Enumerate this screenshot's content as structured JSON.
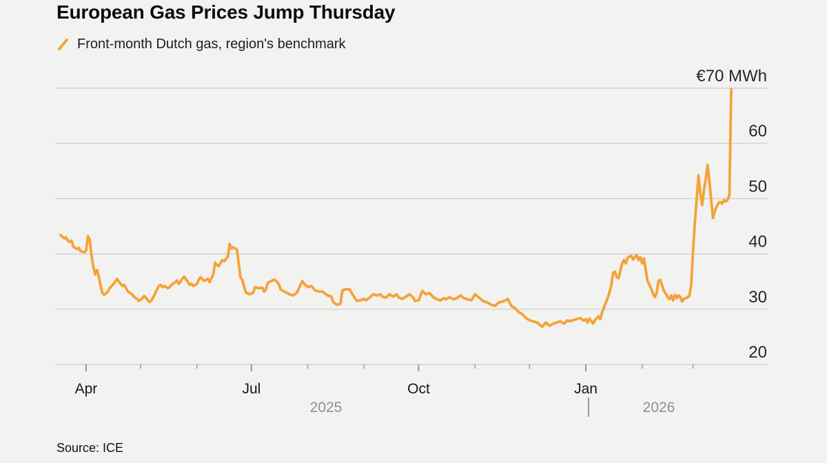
{
  "header": {
    "title": "European Gas Prices Jump Thursday",
    "legend_label": "Front-month Dutch gas, region's benchmark"
  },
  "source": {
    "label": "Source: ICE"
  },
  "colors": {
    "line": "#F5A23A",
    "background": "#F2F2F0",
    "grid": "#CBCBC8",
    "tick": "#9A9A9A",
    "axis_text": "#262626",
    "month_text": "#161616",
    "year_text": "#8E8E8E"
  },
  "chart_data": {
    "type": "line",
    "title": "European Gas Prices Jump Thursday",
    "subtitle": "Front-month Dutch gas, region's benchmark",
    "ylabel": "EUR per MWh",
    "unit_label": "€70 MWh",
    "y_ticks": [
      70,
      60,
      50,
      40,
      30,
      20
    ],
    "ylim": [
      20,
      70
    ],
    "grid": "horizontal",
    "legend_position": "top-left",
    "x_axis": {
      "major_ticks": [
        {
          "label": "Apr",
          "date": "2025-04-01"
        },
        {
          "label": "Jul",
          "date": "2025-07-01"
        },
        {
          "label": "Oct",
          "date": "2025-10-01"
        },
        {
          "label": "Jan",
          "date": "2026-01-01"
        }
      ],
      "minor_tick_dates": [
        "2025-05-01",
        "2025-06-01",
        "2025-08-01",
        "2025-09-01",
        "2025-11-01",
        "2025-12-01",
        "2026-02-01",
        "2026-03-01"
      ],
      "year_left": "2025",
      "year_right": "2026"
    },
    "series": [
      {
        "name": "Front-month Dutch gas, region's benchmark",
        "points": [
          [
            "2025-03-18",
            43.4
          ],
          [
            "2025-03-20",
            42.8
          ],
          [
            "2025-03-21",
            43.0
          ],
          [
            "2025-03-22",
            42.4
          ],
          [
            "2025-03-23",
            42.2
          ],
          [
            "2025-03-24",
            42.4
          ],
          [
            "2025-03-25",
            41.3
          ],
          [
            "2025-03-27",
            40.9
          ],
          [
            "2025-03-28",
            41.1
          ],
          [
            "2025-03-29",
            40.5
          ],
          [
            "2025-03-31",
            40.3
          ],
          [
            "2025-04-01",
            40.6
          ],
          [
            "2025-04-02",
            43.2
          ],
          [
            "2025-04-03",
            42.6
          ],
          [
            "2025-04-04",
            39.7
          ],
          [
            "2025-04-05",
            37.6
          ],
          [
            "2025-04-06",
            36.3
          ],
          [
            "2025-04-07",
            37.1
          ],
          [
            "2025-04-08",
            35.9
          ],
          [
            "2025-04-09",
            34.2
          ],
          [
            "2025-04-10",
            32.9
          ],
          [
            "2025-04-11",
            32.6
          ],
          [
            "2025-04-13",
            33.2
          ],
          [
            "2025-04-14",
            33.8
          ],
          [
            "2025-04-15",
            34.2
          ],
          [
            "2025-04-16",
            34.5
          ],
          [
            "2025-04-17",
            35.0
          ],
          [
            "2025-04-18",
            35.5
          ],
          [
            "2025-04-19",
            35.0
          ],
          [
            "2025-04-20",
            34.6
          ],
          [
            "2025-04-21",
            34.2
          ],
          [
            "2025-04-22",
            34.4
          ],
          [
            "2025-04-23",
            33.8
          ],
          [
            "2025-04-24",
            33.2
          ],
          [
            "2025-04-26",
            32.8
          ],
          [
            "2025-04-27",
            32.4
          ],
          [
            "2025-04-28",
            32.1
          ],
          [
            "2025-04-29",
            31.9
          ],
          [
            "2025-04-30",
            31.5
          ],
          [
            "2025-05-01",
            31.7
          ],
          [
            "2025-05-02",
            32.0
          ],
          [
            "2025-05-03",
            32.4
          ],
          [
            "2025-05-04",
            32.0
          ],
          [
            "2025-05-05",
            31.6
          ],
          [
            "2025-05-06",
            31.3
          ],
          [
            "2025-05-07",
            31.6
          ],
          [
            "2025-05-09",
            32.8
          ],
          [
            "2025-05-10",
            33.6
          ],
          [
            "2025-05-11",
            34.2
          ],
          [
            "2025-05-12",
            34.4
          ],
          [
            "2025-05-13",
            34.0
          ],
          [
            "2025-05-14",
            34.2
          ],
          [
            "2025-05-16",
            33.8
          ],
          [
            "2025-05-17",
            34.0
          ],
          [
            "2025-05-18",
            34.4
          ],
          [
            "2025-05-20",
            34.9
          ],
          [
            "2025-05-21",
            35.2
          ],
          [
            "2025-05-22",
            34.6
          ],
          [
            "2025-05-23",
            35.0
          ],
          [
            "2025-05-24",
            35.5
          ],
          [
            "2025-05-25",
            35.9
          ],
          [
            "2025-05-26",
            35.4
          ],
          [
            "2025-05-27",
            34.9
          ],
          [
            "2025-05-28",
            34.4
          ],
          [
            "2025-05-29",
            34.6
          ],
          [
            "2025-05-30",
            34.2
          ],
          [
            "2025-06-01",
            34.6
          ],
          [
            "2025-06-02",
            35.4
          ],
          [
            "2025-06-03",
            35.8
          ],
          [
            "2025-06-05",
            35.1
          ],
          [
            "2025-06-07",
            35.5
          ],
          [
            "2025-06-08",
            34.9
          ],
          [
            "2025-06-10",
            36.3
          ],
          [
            "2025-06-11",
            38.4
          ],
          [
            "2025-06-12",
            38.0
          ],
          [
            "2025-06-13",
            37.8
          ],
          [
            "2025-06-15",
            38.9
          ],
          [
            "2025-06-16",
            38.7
          ],
          [
            "2025-06-18",
            39.5
          ],
          [
            "2025-06-19",
            41.8
          ],
          [
            "2025-06-20",
            41.0
          ],
          [
            "2025-06-21",
            41.2
          ],
          [
            "2025-06-22",
            41.0
          ],
          [
            "2025-06-23",
            40.8
          ],
          [
            "2025-06-25",
            35.7
          ],
          [
            "2025-06-26",
            35.3
          ],
          [
            "2025-06-27",
            34.0
          ],
          [
            "2025-06-28",
            33.0
          ],
          [
            "2025-06-30",
            32.7
          ],
          [
            "2025-07-02",
            33.0
          ],
          [
            "2025-07-03",
            34.0
          ],
          [
            "2025-07-04",
            33.9
          ],
          [
            "2025-07-05",
            33.8
          ],
          [
            "2025-07-07",
            33.9
          ],
          [
            "2025-07-08",
            33.2
          ],
          [
            "2025-07-09",
            33.6
          ],
          [
            "2025-07-10",
            34.8
          ],
          [
            "2025-07-12",
            35.1
          ],
          [
            "2025-07-13",
            35.3
          ],
          [
            "2025-07-14",
            35.3
          ],
          [
            "2025-07-16",
            34.6
          ],
          [
            "2025-07-17",
            33.6
          ],
          [
            "2025-07-19",
            33.2
          ],
          [
            "2025-07-22",
            32.7
          ],
          [
            "2025-07-24",
            32.5
          ],
          [
            "2025-07-26",
            33.0
          ],
          [
            "2025-07-29",
            35.1
          ],
          [
            "2025-07-30",
            34.6
          ],
          [
            "2025-08-01",
            34.0
          ],
          [
            "2025-08-03",
            34.2
          ],
          [
            "2025-08-05",
            33.4
          ],
          [
            "2025-08-07",
            33.2
          ],
          [
            "2025-08-09",
            33.2
          ],
          [
            "2025-08-11",
            32.7
          ],
          [
            "2025-08-12",
            32.5
          ],
          [
            "2025-08-14",
            32.3
          ],
          [
            "2025-08-15",
            31.3
          ],
          [
            "2025-08-17",
            30.8
          ],
          [
            "2025-08-19",
            31.0
          ],
          [
            "2025-08-20",
            33.4
          ],
          [
            "2025-08-22",
            33.6
          ],
          [
            "2025-08-24",
            33.6
          ],
          [
            "2025-08-26",
            32.5
          ],
          [
            "2025-08-28",
            31.5
          ],
          [
            "2025-08-30",
            31.6
          ],
          [
            "2025-09-01",
            31.9
          ],
          [
            "2025-09-02",
            31.6
          ],
          [
            "2025-09-04",
            32.1
          ],
          [
            "2025-09-06",
            32.7
          ],
          [
            "2025-09-08",
            32.5
          ],
          [
            "2025-09-10",
            32.7
          ],
          [
            "2025-09-11",
            32.3
          ],
          [
            "2025-09-13",
            32.1
          ],
          [
            "2025-09-15",
            32.7
          ],
          [
            "2025-09-17",
            32.3
          ],
          [
            "2025-09-19",
            32.7
          ],
          [
            "2025-09-20",
            32.1
          ],
          [
            "2025-09-22",
            31.9
          ],
          [
            "2025-09-24",
            32.3
          ],
          [
            "2025-09-26",
            32.7
          ],
          [
            "2025-09-28",
            32.1
          ],
          [
            "2025-09-29",
            31.5
          ],
          [
            "2025-10-01",
            31.6
          ],
          [
            "2025-10-03",
            33.3
          ],
          [
            "2025-10-05",
            32.7
          ],
          [
            "2025-10-07",
            32.9
          ],
          [
            "2025-10-09",
            32.2
          ],
          [
            "2025-10-11",
            31.8
          ],
          [
            "2025-10-13",
            31.6
          ],
          [
            "2025-10-15",
            32.0
          ],
          [
            "2025-10-16",
            31.8
          ],
          [
            "2025-10-18",
            32.2
          ],
          [
            "2025-10-20",
            31.8
          ],
          [
            "2025-10-22",
            32.0
          ],
          [
            "2025-10-24",
            32.5
          ],
          [
            "2025-10-26",
            32.0
          ],
          [
            "2025-10-28",
            31.8
          ],
          [
            "2025-10-30",
            31.6
          ],
          [
            "2025-11-01",
            32.7
          ],
          [
            "2025-11-03",
            32.2
          ],
          [
            "2025-11-05",
            31.6
          ],
          [
            "2025-11-06",
            31.4
          ],
          [
            "2025-11-08",
            31.2
          ],
          [
            "2025-11-10",
            30.8
          ],
          [
            "2025-11-12",
            30.6
          ],
          [
            "2025-11-14",
            31.2
          ],
          [
            "2025-11-16",
            31.4
          ],
          [
            "2025-11-18",
            31.6
          ],
          [
            "2025-11-19",
            31.9
          ],
          [
            "2025-11-21",
            30.6
          ],
          [
            "2025-11-23",
            30.2
          ],
          [
            "2025-11-25",
            29.5
          ],
          [
            "2025-11-27",
            29.1
          ],
          [
            "2025-11-29",
            28.4
          ],
          [
            "2025-12-01",
            28.0
          ],
          [
            "2025-12-03",
            27.8
          ],
          [
            "2025-12-05",
            27.6
          ],
          [
            "2025-12-06",
            27.4
          ],
          [
            "2025-12-08",
            26.8
          ],
          [
            "2025-12-10",
            27.6
          ],
          [
            "2025-12-12",
            27.0
          ],
          [
            "2025-12-14",
            27.4
          ],
          [
            "2025-12-16",
            27.6
          ],
          [
            "2025-12-18",
            27.8
          ],
          [
            "2025-12-20",
            27.4
          ],
          [
            "2025-12-22",
            28.0
          ],
          [
            "2025-12-23",
            27.8
          ],
          [
            "2025-12-25",
            28.0
          ],
          [
            "2025-12-27",
            28.2
          ],
          [
            "2025-12-29",
            28.4
          ],
          [
            "2025-12-31",
            27.9
          ],
          [
            "2026-01-01",
            28.2
          ],
          [
            "2026-01-02",
            27.6
          ],
          [
            "2026-01-03",
            28.3
          ],
          [
            "2026-01-05",
            27.4
          ],
          [
            "2026-01-06",
            28.0
          ],
          [
            "2026-01-08",
            28.7
          ],
          [
            "2026-01-09",
            28.2
          ],
          [
            "2026-01-10",
            29.5
          ],
          [
            "2026-01-12",
            31.2
          ],
          [
            "2026-01-13",
            32.0
          ],
          [
            "2026-01-14",
            33.0
          ],
          [
            "2026-01-15",
            34.3
          ],
          [
            "2026-01-16",
            36.6
          ],
          [
            "2026-01-17",
            36.8
          ],
          [
            "2026-01-18",
            35.8
          ],
          [
            "2026-01-19",
            35.6
          ],
          [
            "2026-01-20",
            37.0
          ],
          [
            "2026-01-21",
            38.3
          ],
          [
            "2026-01-22",
            38.9
          ],
          [
            "2026-01-23",
            38.3
          ],
          [
            "2026-01-24",
            39.3
          ],
          [
            "2026-01-26",
            39.7
          ],
          [
            "2026-01-27",
            39.0
          ],
          [
            "2026-01-28",
            39.4
          ],
          [
            "2026-01-29",
            39.8
          ],
          [
            "2026-01-30",
            38.9
          ],
          [
            "2026-01-31",
            39.4
          ],
          [
            "2026-02-01",
            38.3
          ],
          [
            "2026-02-02",
            39.2
          ],
          [
            "2026-02-03",
            37.0
          ],
          [
            "2026-02-04",
            35.1
          ],
          [
            "2026-02-06",
            33.7
          ],
          [
            "2026-02-07",
            32.8
          ],
          [
            "2026-02-08",
            32.2
          ],
          [
            "2026-02-09",
            33.0
          ],
          [
            "2026-02-10",
            35.1
          ],
          [
            "2026-02-11",
            35.3
          ],
          [
            "2026-02-12",
            34.3
          ],
          [
            "2026-02-13",
            33.3
          ],
          [
            "2026-02-14",
            32.8
          ],
          [
            "2026-02-15",
            32.2
          ],
          [
            "2026-02-16",
            31.8
          ],
          [
            "2026-02-17",
            32.5
          ],
          [
            "2026-02-18",
            31.6
          ],
          [
            "2026-02-19",
            32.6
          ],
          [
            "2026-02-20",
            32.0
          ],
          [
            "2026-02-21",
            32.5
          ],
          [
            "2026-02-22",
            32.2
          ],
          [
            "2026-02-23",
            31.4
          ],
          [
            "2026-02-24",
            31.9
          ],
          [
            "2026-02-25",
            32.0
          ],
          [
            "2026-02-26",
            32.2
          ],
          [
            "2026-02-27",
            32.4
          ],
          [
            "2026-02-28",
            34.5
          ],
          [
            "2026-03-01",
            40.5
          ],
          [
            "2026-03-02",
            45.8
          ],
          [
            "2026-03-03",
            49.9
          ],
          [
            "2026-03-04",
            54.2
          ],
          [
            "2026-03-05",
            51.0
          ],
          [
            "2026-03-06",
            48.8
          ],
          [
            "2026-03-07",
            51.5
          ],
          [
            "2026-03-08",
            53.5
          ],
          [
            "2026-03-09",
            56.1
          ],
          [
            "2026-03-10",
            53.1
          ],
          [
            "2026-03-11",
            49.7
          ],
          [
            "2026-03-12",
            46.5
          ],
          [
            "2026-03-13",
            47.8
          ],
          [
            "2026-03-14",
            48.6
          ],
          [
            "2026-03-15",
            49.2
          ],
          [
            "2026-03-16",
            49.4
          ],
          [
            "2026-03-17",
            49.1
          ],
          [
            "2026-03-18",
            49.7
          ],
          [
            "2026-03-19",
            49.5
          ],
          [
            "2026-03-20",
            49.8
          ],
          [
            "2026-03-21",
            50.6
          ],
          [
            "2026-03-22",
            69.8
          ]
        ]
      }
    ]
  }
}
